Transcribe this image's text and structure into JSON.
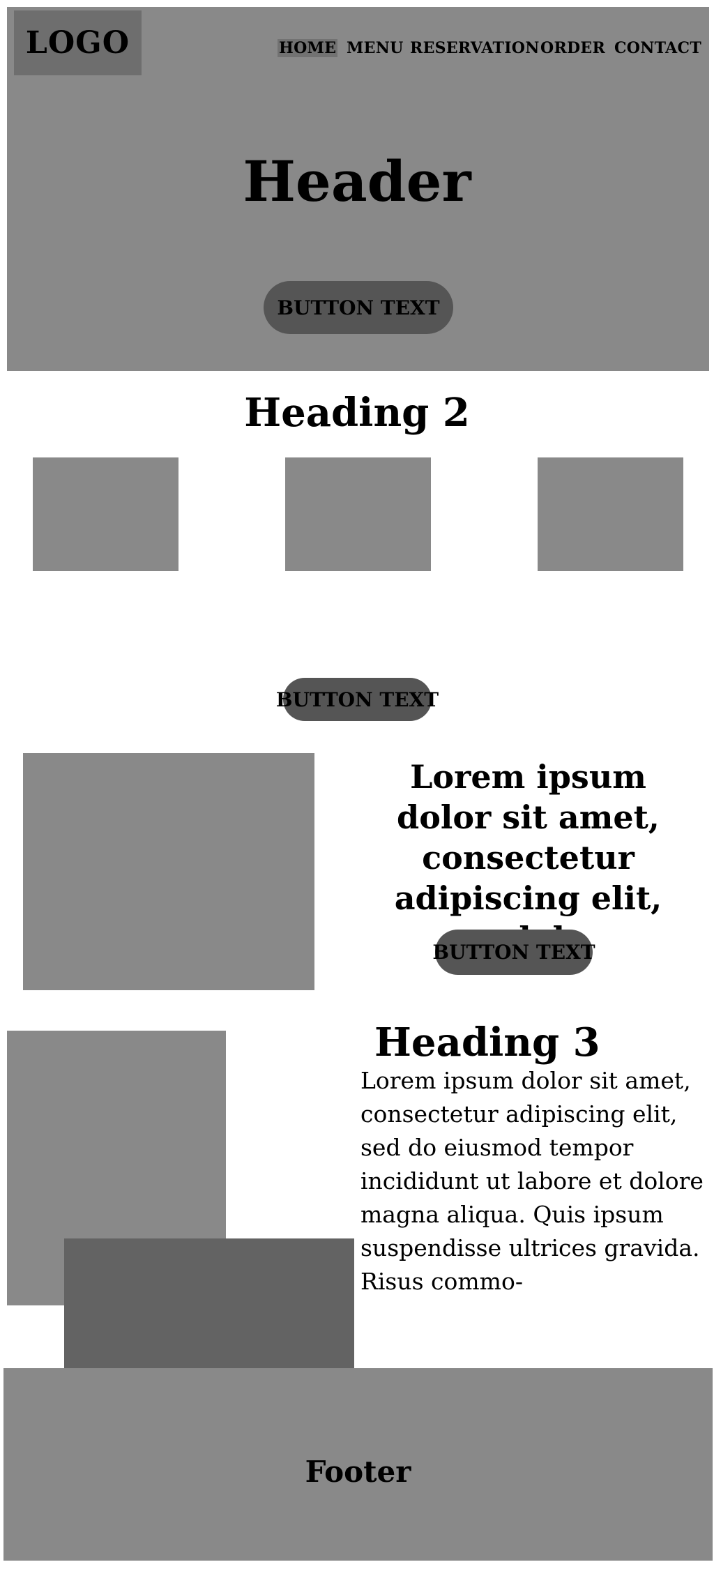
{
  "header": {
    "logo": "LOGO",
    "nav": [
      "HOME",
      "MENU",
      "RESERVATION",
      "ORDER",
      "CONTACT"
    ],
    "title": "Header",
    "button_label": "BUTTON TEXT"
  },
  "section2": {
    "heading": "Heading 2",
    "button_label": "BUTTON TEXT"
  },
  "feature": {
    "text": "Lorem ipsum dolor sit amet, consectetur adipiscing elit, sed do",
    "button_label": "BUTTON TEXT"
  },
  "section3": {
    "heading": "Heading 3",
    "body": "Lorem ipsum dolor sit amet, consectetur adipiscing elit, sed do eiusmod tempor incididunt ut labore et dolore magna aliqua. Quis ipsum suspendisse ultrices gravida. Risus commo-"
  },
  "footer": {
    "text": "Footer"
  },
  "colors": {
    "placeholder_gray": "#898989",
    "button_dark": "#555555",
    "nav_active": "#727272",
    "overlay_dark": "#636363"
  }
}
